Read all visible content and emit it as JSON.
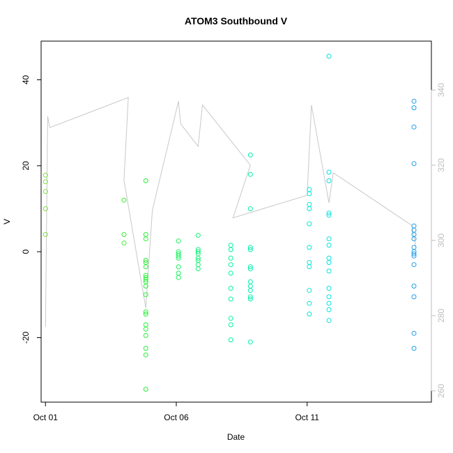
{
  "chart_data": {
    "type": "scatter",
    "title": "ATOM3 Southbound V",
    "xlabel": "Date",
    "ylabel": "V",
    "x_ticks": [
      "Oct 01",
      "Oct 06",
      "Oct 11"
    ],
    "x_tick_dates": [
      "2012-10-01",
      "2012-10-06",
      "2012-10-11"
    ],
    "xlim": [
      "2012-09-30T20:00",
      "2012-10-15T18:00"
    ],
    "ylim": [
      -35,
      49
    ],
    "y_ticks": [
      -20,
      0,
      20,
      40
    ],
    "y2_ticks": [
      260,
      280,
      300,
      320,
      340
    ],
    "y2lim": [
      257,
      353
    ],
    "grid": false,
    "colors": {
      "line": "#c8c8c8",
      "axis": "#000000",
      "right_axis": "#bdbdbd",
      "point_gradient": [
        "#7fe03a",
        "#2ef02e",
        "#00f59a",
        "#00e8e0",
        "#1e9ee8"
      ]
    },
    "series": [
      {
        "marker": "circle",
        "points": [
          [
            "2012-10-01T00:00",
            4
          ],
          [
            "2012-10-01T00:00",
            10
          ],
          [
            "2012-10-01T00:00",
            14
          ],
          [
            "2012-10-01T00:00",
            16.3
          ],
          [
            "2012-10-01T00:00",
            17.8
          ],
          [
            "2012-10-04T00:00",
            2
          ],
          [
            "2012-10-04T00:00",
            4
          ],
          [
            "2012-10-04T00:00",
            12
          ],
          [
            "2012-10-04T20:00",
            -32
          ],
          [
            "2012-10-04T20:00",
            -24
          ],
          [
            "2012-10-04T20:00",
            -22.5
          ],
          [
            "2012-10-04T20:00",
            -19.5
          ],
          [
            "2012-10-04T20:00",
            -18
          ],
          [
            "2012-10-04T20:00",
            -17
          ],
          [
            "2012-10-04T20:00",
            -14.5
          ],
          [
            "2012-10-04T20:00",
            -14
          ],
          [
            "2012-10-04T20:00",
            -10
          ],
          [
            "2012-10-04T20:00",
            -8
          ],
          [
            "2012-10-04T20:00",
            -7
          ],
          [
            "2012-10-04T20:00",
            -6.5
          ],
          [
            "2012-10-04T20:00",
            -6
          ],
          [
            "2012-10-04T20:00",
            -5.5
          ],
          [
            "2012-10-04T20:00",
            -3.5
          ],
          [
            "2012-10-04T20:00",
            -2.5
          ],
          [
            "2012-10-04T20:00",
            -2
          ],
          [
            "2012-10-04T20:00",
            3
          ],
          [
            "2012-10-04T20:00",
            4
          ],
          [
            "2012-10-04T20:00",
            16.5
          ],
          [
            "2012-10-06T02:00",
            -6
          ],
          [
            "2012-10-06T02:00",
            -5
          ],
          [
            "2012-10-06T02:00",
            -3.5
          ],
          [
            "2012-10-06T02:00",
            -1.5
          ],
          [
            "2012-10-06T02:00",
            -1
          ],
          [
            "2012-10-06T02:00",
            -0.5
          ],
          [
            "2012-10-06T02:00",
            0
          ],
          [
            "2012-10-06T02:00",
            2.5
          ],
          [
            "2012-10-06T20:00",
            -4
          ],
          [
            "2012-10-06T20:00",
            -3
          ],
          [
            "2012-10-06T20:00",
            -2
          ],
          [
            "2012-10-06T20:00",
            -1.5
          ],
          [
            "2012-10-06T20:00",
            -0.5
          ],
          [
            "2012-10-06T20:00",
            0
          ],
          [
            "2012-10-06T20:00",
            0.5
          ],
          [
            "2012-10-06T20:00",
            3.8
          ],
          [
            "2012-10-08T02:00",
            -20.5
          ],
          [
            "2012-10-08T02:00",
            -17
          ],
          [
            "2012-10-08T02:00",
            -15.5
          ],
          [
            "2012-10-08T02:00",
            -11
          ],
          [
            "2012-10-08T02:00",
            -8.5
          ],
          [
            "2012-10-08T02:00",
            -5
          ],
          [
            "2012-10-08T02:00",
            -3
          ],
          [
            "2012-10-08T02:00",
            -1.5
          ],
          [
            "2012-10-08T02:00",
            0.5
          ],
          [
            "2012-10-08T02:00",
            1.5
          ],
          [
            "2012-10-08T20:00",
            -21
          ],
          [
            "2012-10-08T20:00",
            -11
          ],
          [
            "2012-10-08T20:00",
            -10.5
          ],
          [
            "2012-10-08T20:00",
            -9
          ],
          [
            "2012-10-08T20:00",
            -8
          ],
          [
            "2012-10-08T20:00",
            -7
          ],
          [
            "2012-10-08T20:00",
            -4
          ],
          [
            "2012-10-08T20:00",
            -3.5
          ],
          [
            "2012-10-08T20:00",
            0.5
          ],
          [
            "2012-10-08T20:00",
            1
          ],
          [
            "2012-10-08T20:00",
            10
          ],
          [
            "2012-10-08T20:00",
            18
          ],
          [
            "2012-10-08T20:00",
            22.5
          ],
          [
            "2012-10-11T02:00",
            -14.5
          ],
          [
            "2012-10-11T02:00",
            -12
          ],
          [
            "2012-10-11T02:00",
            -9
          ],
          [
            "2012-10-11T02:00",
            -3.5
          ],
          [
            "2012-10-11T02:00",
            -2.5
          ],
          [
            "2012-10-11T02:00",
            1
          ],
          [
            "2012-10-11T02:00",
            6.5
          ],
          [
            "2012-10-11T02:00",
            10
          ],
          [
            "2012-10-11T02:00",
            11
          ],
          [
            "2012-10-11T02:00",
            13.5
          ],
          [
            "2012-10-11T02:00",
            14.5
          ],
          [
            "2012-10-11T20:00",
            -16
          ],
          [
            "2012-10-11T20:00",
            -13.5
          ],
          [
            "2012-10-11T20:00",
            -12
          ],
          [
            "2012-10-11T20:00",
            -10.5
          ],
          [
            "2012-10-11T20:00",
            -8.5
          ],
          [
            "2012-10-11T20:00",
            -4.5
          ],
          [
            "2012-10-11T20:00",
            -2.5
          ],
          [
            "2012-10-11T20:00",
            -1.5
          ],
          [
            "2012-10-11T20:00",
            1.5
          ],
          [
            "2012-10-11T20:00",
            3
          ],
          [
            "2012-10-11T20:00",
            8.5
          ],
          [
            "2012-10-11T20:00",
            9
          ],
          [
            "2012-10-11T20:00",
            16.5
          ],
          [
            "2012-10-11T20:00",
            18.5
          ],
          [
            "2012-10-11T20:00",
            45.5
          ],
          [
            "2012-10-15T02:00",
            -22.5
          ],
          [
            "2012-10-15T02:00",
            -19
          ],
          [
            "2012-10-15T02:00",
            -10.5
          ],
          [
            "2012-10-15T02:00",
            -8
          ],
          [
            "2012-10-15T02:00",
            -3
          ],
          [
            "2012-10-15T02:00",
            -1
          ],
          [
            "2012-10-15T02:00",
            -0.5
          ],
          [
            "2012-10-15T02:00",
            0
          ],
          [
            "2012-10-15T02:00",
            1
          ],
          [
            "2012-10-15T02:00",
            3
          ],
          [
            "2012-10-15T02:00",
            4
          ],
          [
            "2012-10-15T02:00",
            5
          ],
          [
            "2012-10-15T02:00",
            6
          ],
          [
            "2012-10-15T02:00",
            20.5
          ],
          [
            "2012-10-15T02:00",
            29
          ],
          [
            "2012-10-15T02:00",
            33.5
          ],
          [
            "2012-10-15T02:00",
            35
          ]
        ]
      },
      {
        "axis": "right",
        "line": [
          [
            "2012-10-01T00:00",
            277
          ],
          [
            "2012-10-01T02:00",
            333
          ],
          [
            "2012-10-01T04:00",
            330
          ],
          [
            "2012-10-04T04:00",
            338
          ],
          [
            "2012-10-04T00:00",
            316
          ],
          [
            "2012-10-04T20:00",
            282
          ],
          [
            "2012-10-05T02:00",
            308
          ],
          [
            "2012-10-06T02:00",
            337
          ],
          [
            "2012-10-06T04:00",
            331
          ],
          [
            "2012-10-06T20:00",
            325
          ],
          [
            "2012-10-07T00:00",
            336
          ],
          [
            "2012-10-08T20:00",
            320
          ],
          [
            "2012-10-08T04:00",
            306
          ],
          [
            "2012-10-11T00:00",
            312
          ],
          [
            "2012-10-11T04:00",
            336
          ],
          [
            "2012-10-11T20:00",
            310
          ],
          [
            "2012-10-12T00:00",
            318
          ],
          [
            "2012-10-15T00:00",
            304
          ],
          [
            "2012-10-15T04:00",
            298
          ]
        ]
      }
    ]
  }
}
